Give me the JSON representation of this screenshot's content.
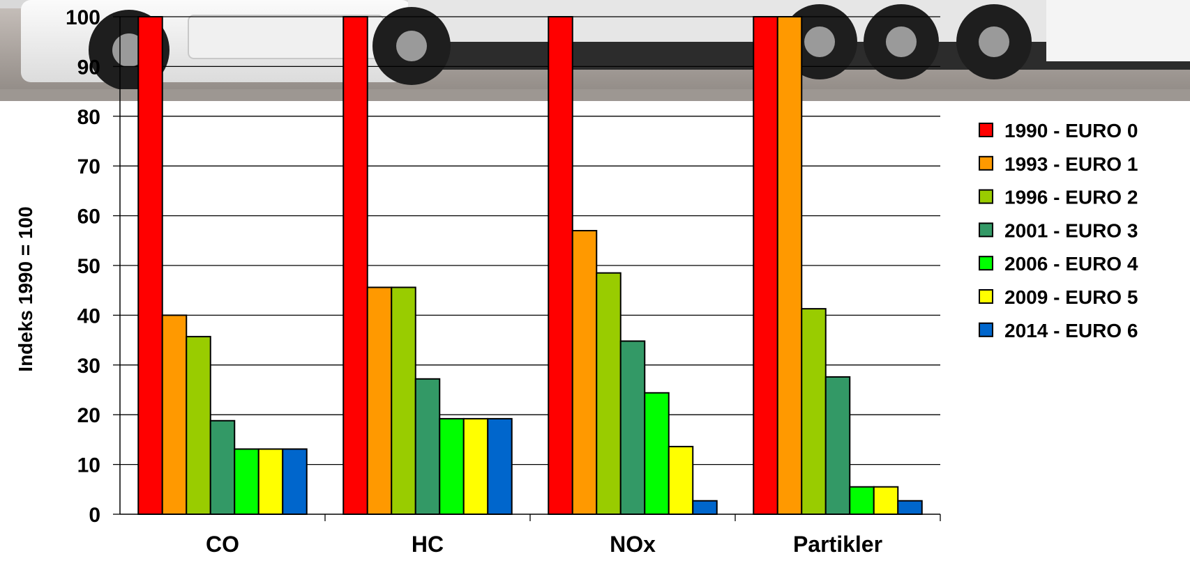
{
  "chart_data": {
    "type": "bar",
    "categories": [
      "CO",
      "HC",
      "NOx",
      "Partikler"
    ],
    "series": [
      {
        "name": "1990 - EURO 0",
        "color": "#ff0000",
        "values": [
          100,
          100,
          100,
          100
        ]
      },
      {
        "name": "1993 - EURO 1",
        "color": "#ff9900",
        "values": [
          40,
          45.6,
          57,
          100
        ]
      },
      {
        "name": "1996 - EURO 2",
        "color": "#99cc00",
        "values": [
          35.7,
          45.6,
          48.5,
          41.3
        ]
      },
      {
        "name": "2001 - EURO 3",
        "color": "#339966",
        "values": [
          18.8,
          27.2,
          34.8,
          27.6
        ]
      },
      {
        "name": "2006 - EURO 4",
        "color": "#00ff00",
        "values": [
          13.1,
          19.2,
          24.4,
          5.5
        ]
      },
      {
        "name": "2009 - EURO 5",
        "color": "#ffff00",
        "values": [
          13.1,
          19.2,
          13.6,
          5.5
        ]
      },
      {
        "name": "2014 - EURO 6",
        "color": "#0066cc",
        "values": [
          13.1,
          19.2,
          2.7,
          2.7
        ]
      }
    ],
    "ylabel": "Indeks 1990 = 100",
    "ylim": [
      0,
      100
    ],
    "yticks": [
      0,
      10,
      20,
      30,
      40,
      50,
      60,
      70,
      80,
      90,
      100
    ],
    "grid": true,
    "legend_position": "right",
    "background_photo": "truck-photo"
  }
}
